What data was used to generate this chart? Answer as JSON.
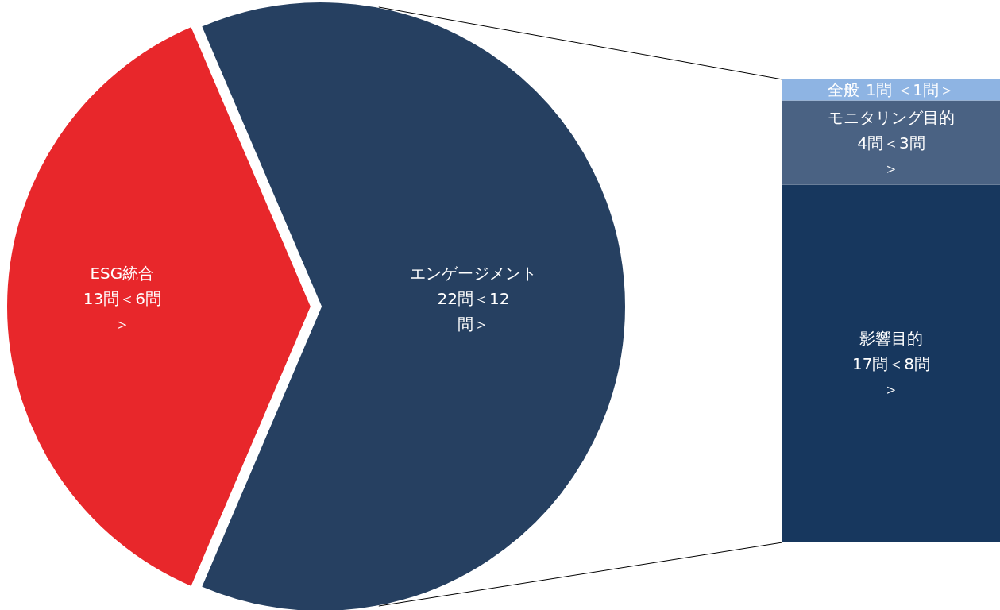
{
  "chart_data": [
    {
      "type": "pie",
      "categories": [
        "ESG統合",
        "エンゲージメント"
      ],
      "values": [
        13,
        22
      ],
      "colors": [
        "#e8272b",
        "#264061"
      ],
      "value_labels": [
        "13問＜6問＞",
        "22問＜12問＞"
      ]
    },
    {
      "type": "bar",
      "stacked": true,
      "categories": [
        null
      ],
      "ylim": [
        0,
        22
      ],
      "series": [
        {
          "name": "影響目的",
          "color": "#17375e",
          "values": [
            17
          ],
          "value_labels": [
            "17問＜8問＞"
          ]
        },
        {
          "name": "モニタリング目的",
          "color": "#4a6283",
          "values": [
            4
          ],
          "value_labels": [
            "4問＜3問＞"
          ]
        },
        {
          "name": "全般",
          "color": "#8eb4e3",
          "values": [
            1
          ],
          "value_labels": [
            "1問 ＜1問＞"
          ]
        }
      ]
    }
  ]
}
